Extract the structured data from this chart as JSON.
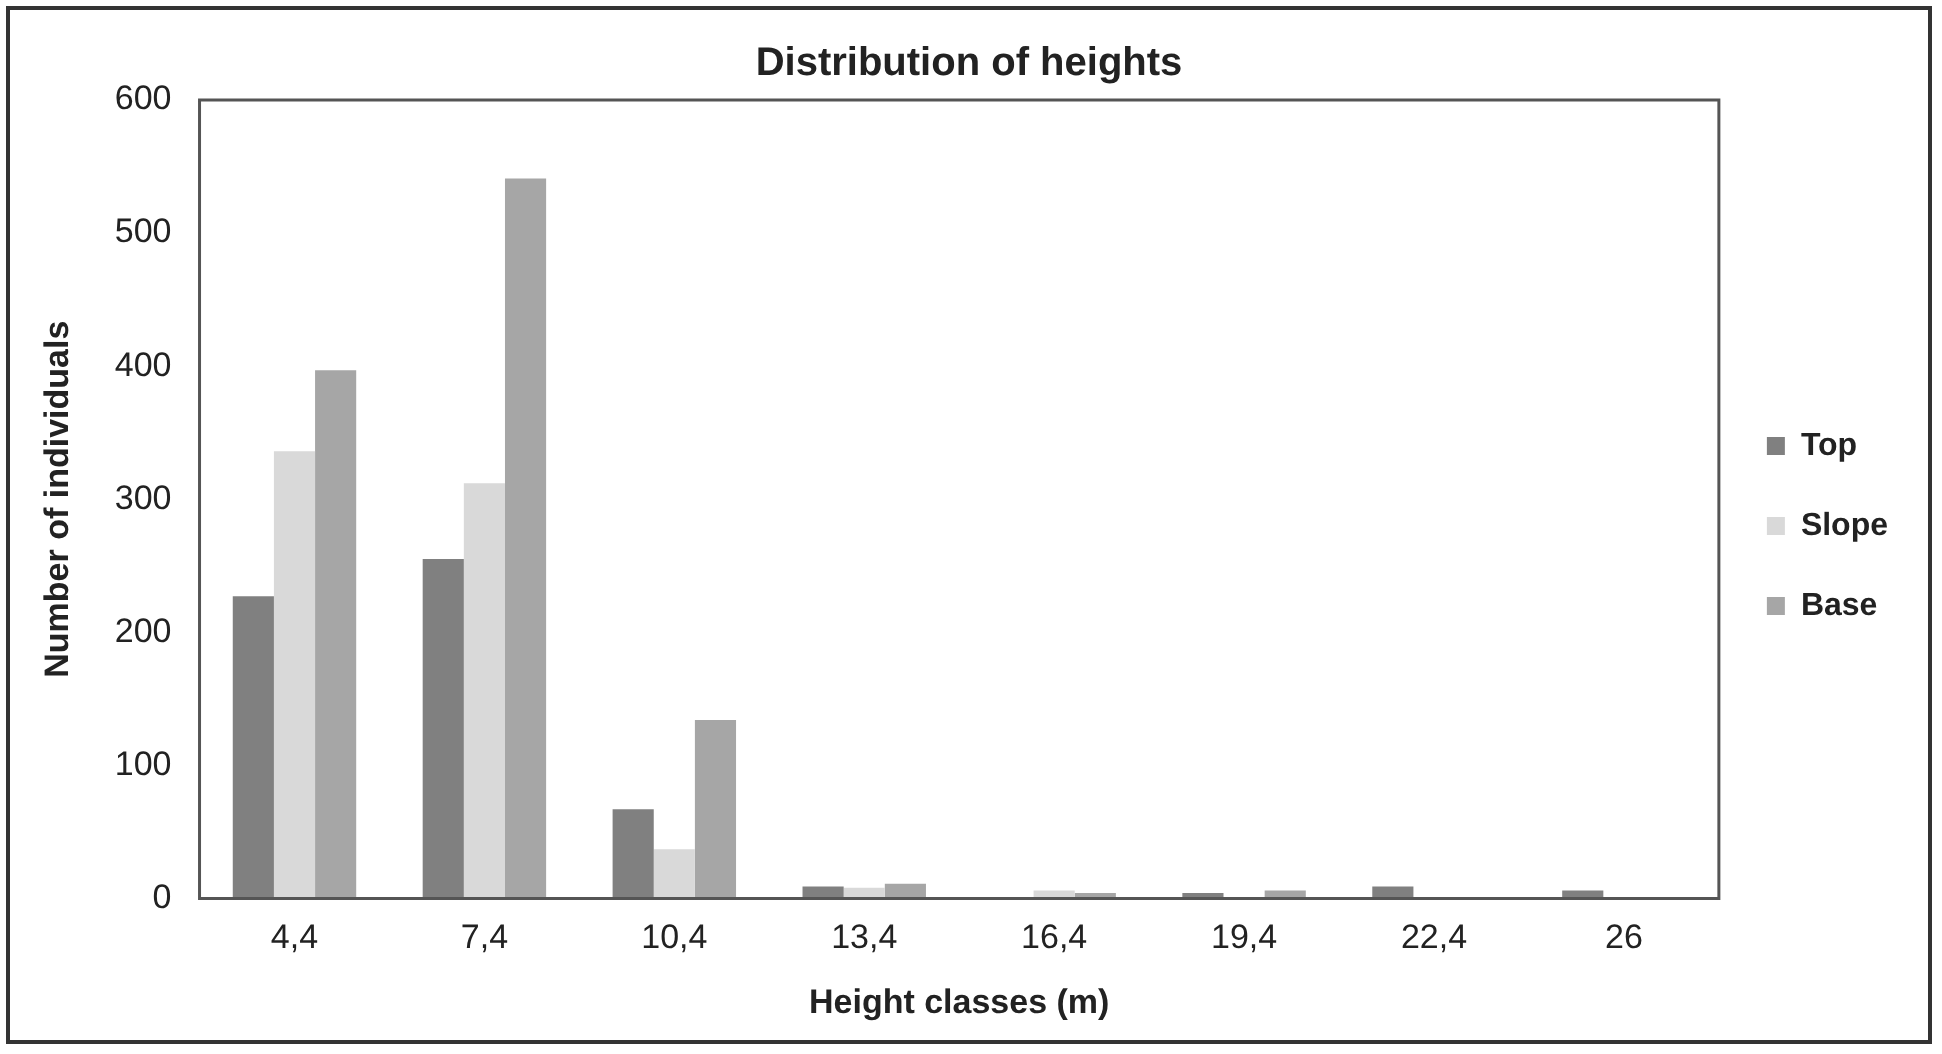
{
  "chart_data": {
    "type": "bar",
    "title": "Distribution of heights",
    "xlabel": "Height classes (m)",
    "ylabel": "Number of individuals",
    "categories": [
      "4,4",
      "7,4",
      "10,4",
      "13,4",
      "16,4",
      "19,4",
      "22,4",
      "26"
    ],
    "series": [
      {
        "name": "Top",
        "color": "#808080",
        "values": [
          227,
          255,
          67,
          9,
          0,
          4,
          9,
          6
        ]
      },
      {
        "name": "Slope",
        "color": "#d9d9d9",
        "values": [
          336,
          312,
          37,
          8,
          6,
          0,
          0,
          0
        ]
      },
      {
        "name": "Base",
        "color": "#a6a6a6",
        "values": [
          397,
          541,
          134,
          11,
          4,
          6,
          0,
          0
        ]
      }
    ],
    "ylim": [
      0,
      600
    ],
    "yticks": [
      0,
      100,
      200,
      300,
      400,
      500,
      600
    ],
    "grid": false,
    "legend": "right"
  }
}
